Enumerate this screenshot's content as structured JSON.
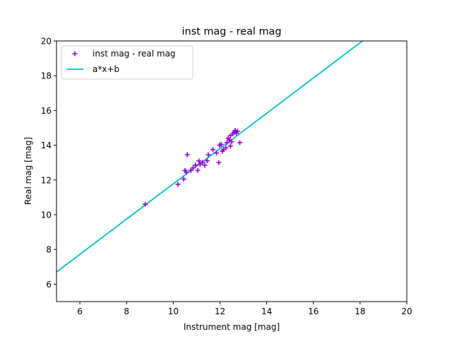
{
  "chart_data": {
    "type": "scatter",
    "title": "inst mag - real mag",
    "xlabel": "Instrument mag [mag]",
    "ylabel": "Real mag [mag]",
    "xlim": [
      5,
      20
    ],
    "ylim": [
      5,
      20
    ],
    "xticks": [
      6,
      8,
      10,
      12,
      14,
      16,
      18,
      20
    ],
    "yticks": [
      6,
      8,
      10,
      12,
      14,
      16,
      18,
      20
    ],
    "grid": false,
    "legend_position": "upper-left",
    "series": [
      {
        "name": "inst mag - real mag",
        "kind": "scatter",
        "marker": "+",
        "color": "#9400d3",
        "points": [
          [
            8.8,
            10.6
          ],
          [
            10.2,
            11.75
          ],
          [
            10.45,
            12.05
          ],
          [
            10.5,
            12.55
          ],
          [
            10.55,
            12.45
          ],
          [
            10.6,
            13.45
          ],
          [
            10.75,
            12.55
          ],
          [
            10.85,
            12.7
          ],
          [
            10.95,
            12.85
          ],
          [
            11.05,
            12.55
          ],
          [
            11.1,
            13.1
          ],
          [
            11.15,
            12.9
          ],
          [
            11.25,
            13.0
          ],
          [
            11.35,
            12.85
          ],
          [
            11.45,
            13.1
          ],
          [
            11.5,
            13.45
          ],
          [
            11.7,
            13.75
          ],
          [
            11.85,
            13.55
          ],
          [
            11.95,
            13.0
          ],
          [
            11.98,
            14.0
          ],
          [
            12.05,
            14.05
          ],
          [
            12.1,
            13.65
          ],
          [
            12.15,
            13.75
          ],
          [
            12.25,
            13.85
          ],
          [
            12.3,
            14.15
          ],
          [
            12.35,
            14.4
          ],
          [
            12.4,
            14.3
          ],
          [
            12.45,
            13.95
          ],
          [
            12.45,
            14.55
          ],
          [
            12.5,
            14.2
          ],
          [
            12.55,
            14.65
          ],
          [
            12.6,
            14.75
          ],
          [
            12.65,
            14.85
          ],
          [
            12.7,
            14.7
          ],
          [
            12.75,
            14.8
          ],
          [
            12.85,
            14.15
          ]
        ]
      },
      {
        "name": "a*x+b",
        "kind": "line",
        "color": "#00bfbf",
        "points": [
          [
            5,
            6.7
          ],
          [
            18.1,
            20
          ]
        ]
      }
    ]
  }
}
